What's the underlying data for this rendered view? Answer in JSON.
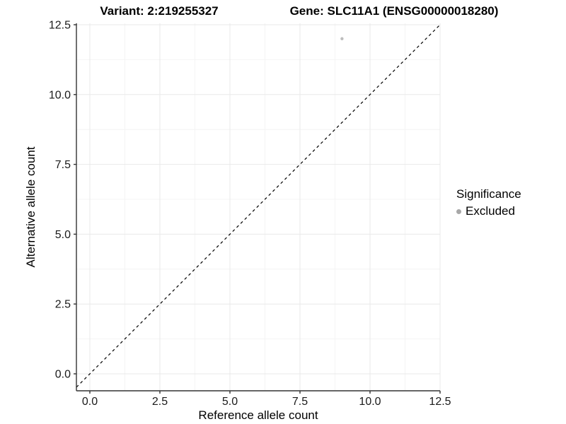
{
  "header": {
    "title_left": "Variant: 2:219255327",
    "title_right": "Gene: SLC11A1 (ENSG00000018280)"
  },
  "chart_data": {
    "type": "scatter",
    "titles": [
      "Variant: 2:219255327",
      "Gene: SLC11A1 (ENSG00000018280)"
    ],
    "xlabel": "Reference allele count",
    "ylabel": "Alternative allele count",
    "xlim": [
      -0.5,
      12.5
    ],
    "ylim": [
      -0.6,
      12.5
    ],
    "x_ticks": [
      0,
      2.5,
      5,
      7.5,
      10,
      12.5
    ],
    "x_tick_labels": [
      "0.0",
      "2.5",
      "5.0",
      "7.5",
      "10.0",
      "12.5"
    ],
    "y_ticks": [
      0,
      2.5,
      5,
      7.5,
      10,
      12.5
    ],
    "y_tick_labels": [
      "0.0",
      "2.5",
      "5.0",
      "7.5",
      "10.0",
      "12.5"
    ],
    "x_minor_ticks": [
      1.25,
      3.75,
      6.25,
      8.75,
      11.25
    ],
    "y_minor_ticks": [
      1.25,
      3.75,
      6.25,
      8.75,
      11.25
    ],
    "grid": {
      "major_color": "#e9e9e9",
      "minor_color": "#f4f4f4",
      "background": "#ffffff"
    },
    "axis": {
      "line_color": "#333333",
      "tick_color": "#333333",
      "text_color": "#1a1a1a"
    },
    "reference_line": {
      "kind": "identity y=x",
      "style": "dashed",
      "color": "#000000"
    },
    "series": [
      {
        "name": "Excluded",
        "marker": "circle",
        "color": "#bdbdbd",
        "points": [
          {
            "x": 9,
            "y": 12
          }
        ]
      }
    ],
    "legend": {
      "title": "Significance",
      "position": "right",
      "items": [
        {
          "label": "Excluded",
          "color": "#a8a8a8"
        }
      ]
    }
  }
}
